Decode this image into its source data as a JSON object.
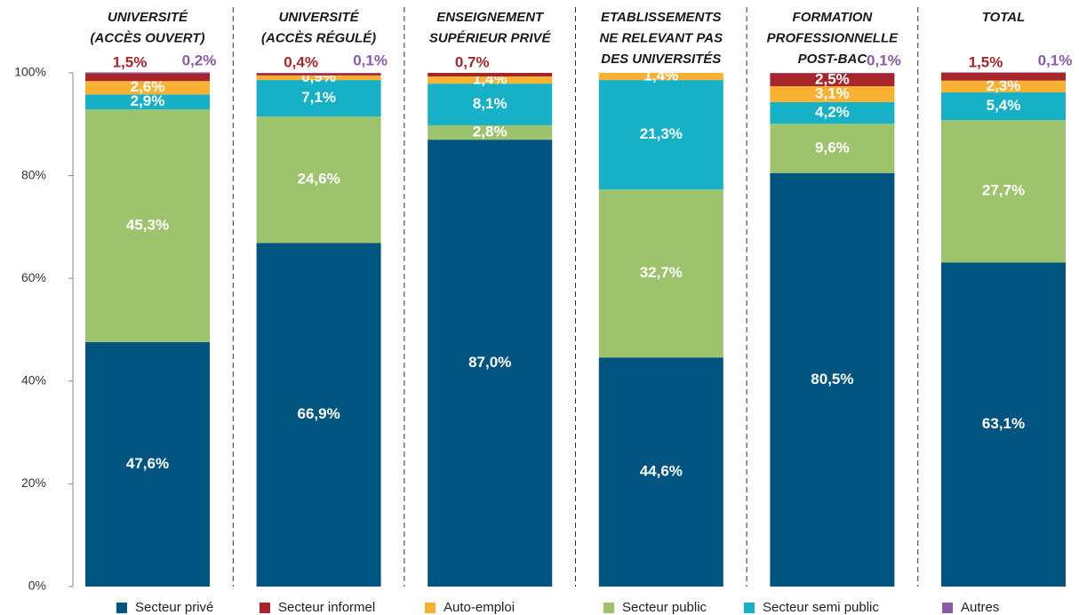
{
  "chart_data": {
    "type": "stacked_bar",
    "categories": [
      [
        "UNIVERSITÉ",
        "(ACCÈS OUVERT)"
      ],
      [
        "UNIVERSITÉ",
        "(ACCÈS RÉGULÉ)"
      ],
      [
        "ENSEIGNEMENT",
        "SUPÉRIEUR PRIVÉ"
      ],
      [
        "ETABLISSEMENTS",
        "NE RELEVANT PAS",
        "DES UNIVERSITÉS"
      ],
      [
        "FORMATION",
        "PROFESSIONNELLE",
        "POST-BAC"
      ],
      [
        "TOTAL"
      ]
    ],
    "series": [
      {
        "name": "Secteur privé",
        "color": "#005580",
        "values": [
          47.6,
          66.9,
          87.0,
          44.6,
          80.5,
          63.1
        ],
        "value_labels": [
          "47,6%",
          "66,9%",
          "87,0%",
          "44,6%",
          "80,5%",
          "63,1%"
        ]
      },
      {
        "name": "Secteur informel",
        "color": "#a6262b",
        "values": [
          1.5,
          0.4,
          0.7,
          null,
          2.5,
          1.5
        ],
        "value_labels": [
          "1,5%",
          "0,4%",
          "0,7%",
          null,
          "2,5%",
          "1,5%"
        ]
      },
      {
        "name": "Auto-emploi",
        "color": "#f9b134",
        "values": [
          2.6,
          0.9,
          1.4,
          1.4,
          3.1,
          2.3
        ],
        "value_labels": [
          "2,6%",
          "0,9%",
          "1,4%",
          "1,4%",
          "3,1%",
          "2,3%"
        ]
      },
      {
        "name": "Secteur public",
        "color": "#9dc36d",
        "values": [
          45.3,
          24.6,
          2.8,
          32.7,
          9.6,
          27.7
        ],
        "value_labels": [
          "45,3%",
          "24,6%",
          "2,8%",
          "32,7%",
          "9,6%",
          "27,7%"
        ]
      },
      {
        "name": "Secteur semi public",
        "color": "#16b1c6",
        "values": [
          2.9,
          7.1,
          8.1,
          21.3,
          4.2,
          5.4
        ],
        "value_labels": [
          "2,9%",
          "7,1%",
          "8,1%",
          "21,3%",
          "4,2%",
          "5,4%"
        ]
      },
      {
        "name": "Autres",
        "color": "#8c5aa6",
        "values": [
          0.2,
          0.1,
          null,
          null,
          0.1,
          0.1
        ],
        "value_labels": [
          "0,2%",
          "0,1%",
          null,
          null,
          "0,1%",
          "0,1%"
        ]
      }
    ],
    "stack_order": [
      0,
      3,
      4,
      2,
      1,
      5
    ],
    "ylim": [
      0,
      100
    ],
    "yticks": [
      {
        "value": 0,
        "label": "0%"
      },
      {
        "value": 20,
        "label": "20%"
      },
      {
        "value": 40,
        "label": "40%"
      },
      {
        "value": 60,
        "label": "60%"
      },
      {
        "value": 80,
        "label": "80%"
      },
      {
        "value": 100,
        "label": "100%"
      }
    ],
    "legend": "bottom"
  }
}
